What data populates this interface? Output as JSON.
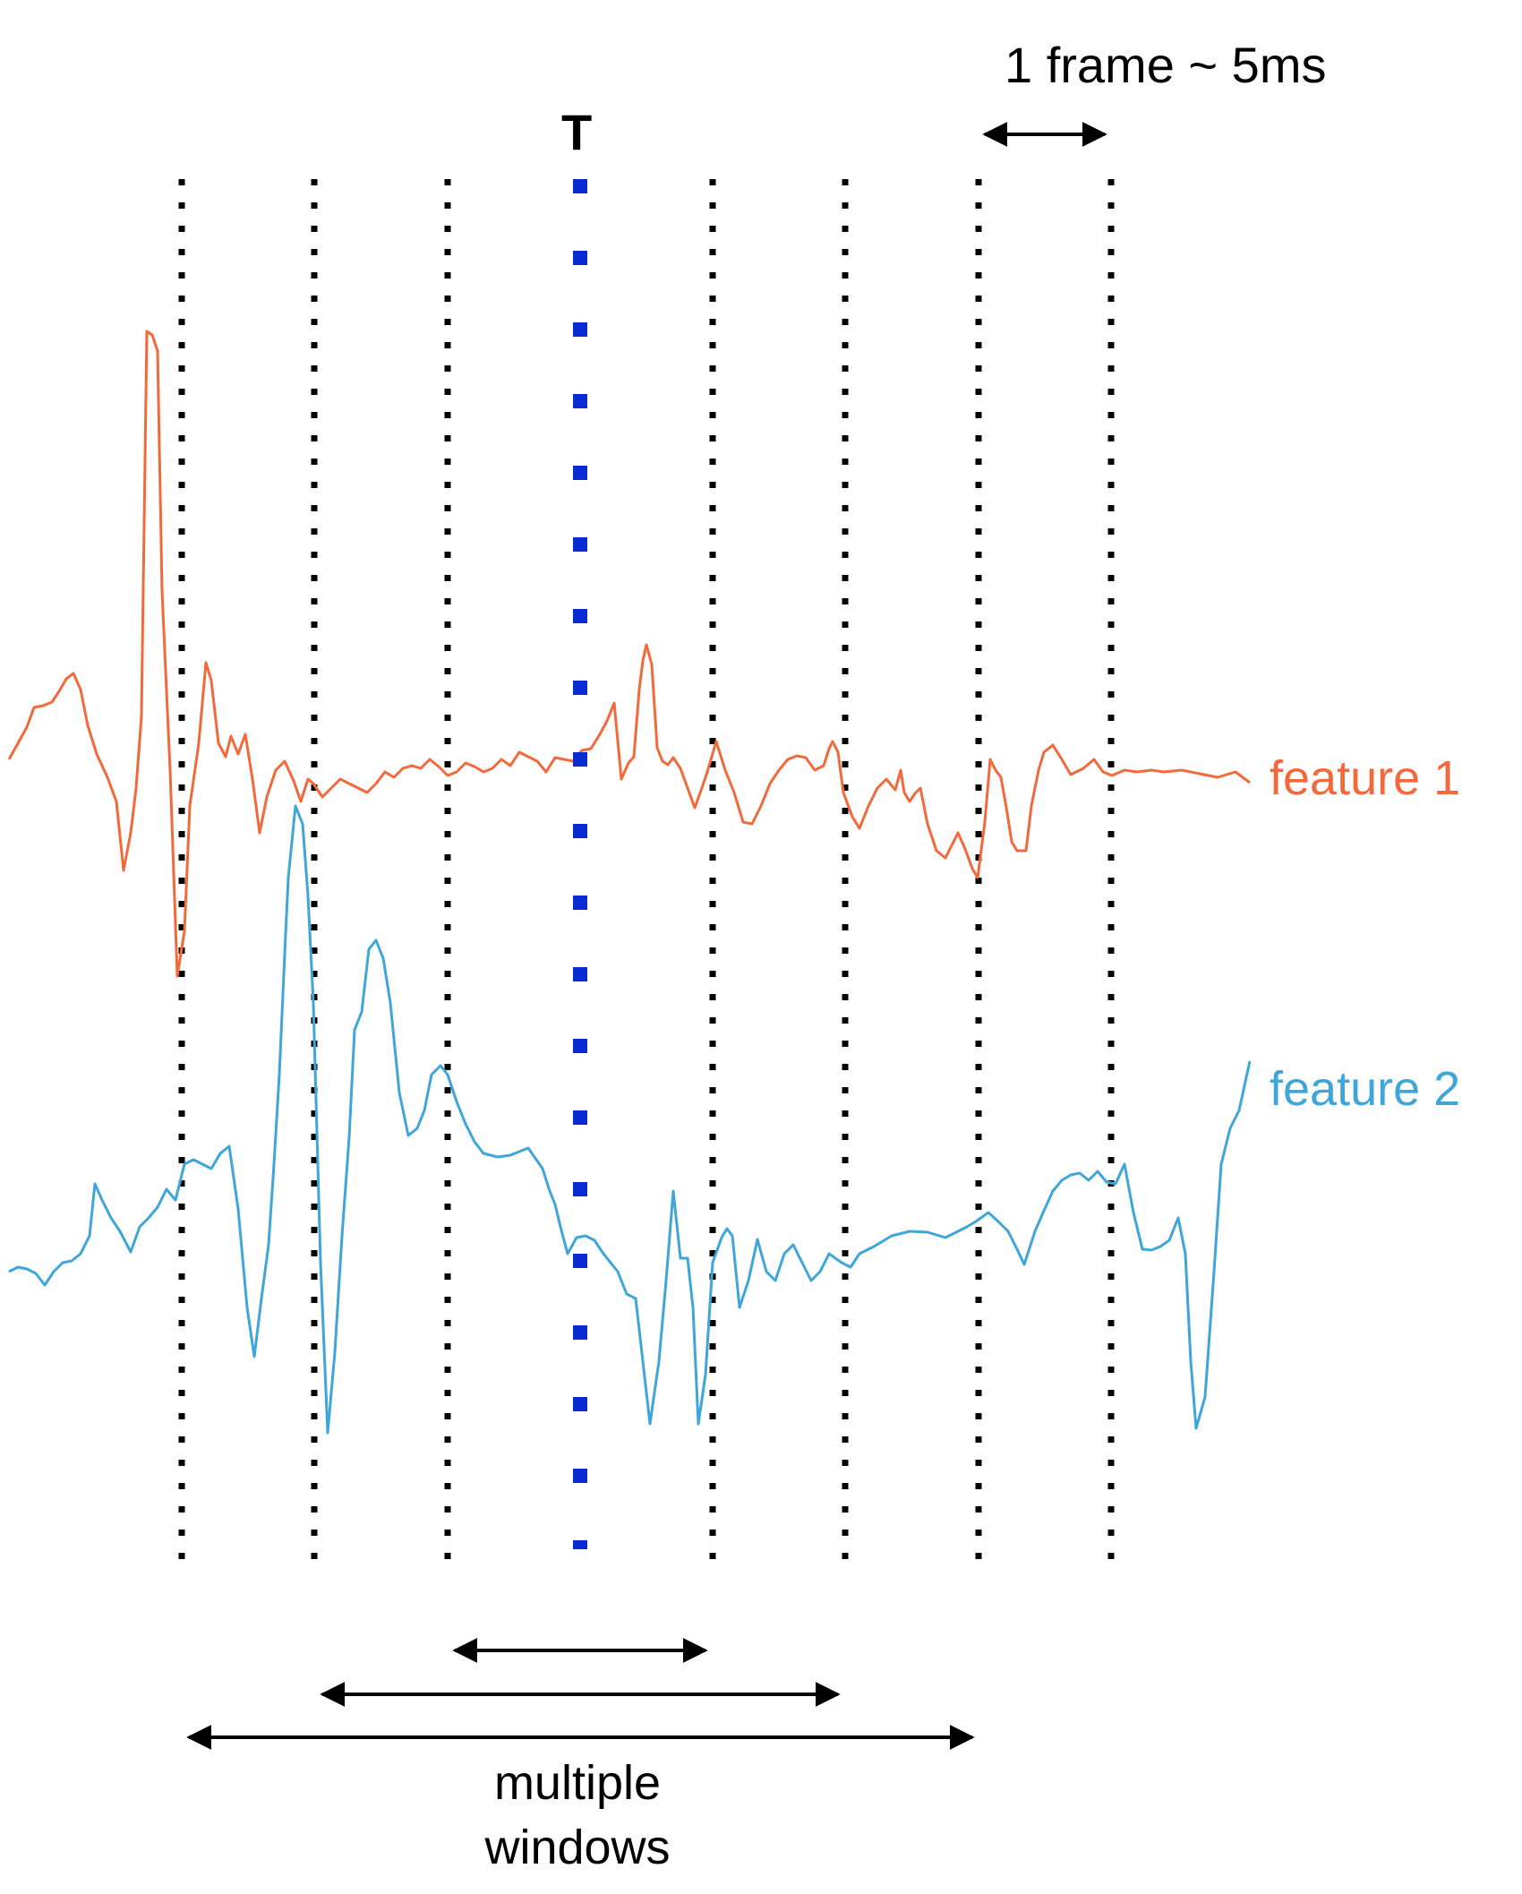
{
  "labels": {
    "frame": "1 frame ~ 5ms",
    "t": "T",
    "feature1": "feature 1",
    "feature2": "feature 2",
    "windows_line1": "multiple",
    "windows_line2": "windows"
  },
  "colors": {
    "feature1": "#f26a3b",
    "feature2": "#3ea6d9",
    "t_line": "#0a2bd1",
    "frame_lines": "#000000",
    "arrows": "#000000"
  }
}
